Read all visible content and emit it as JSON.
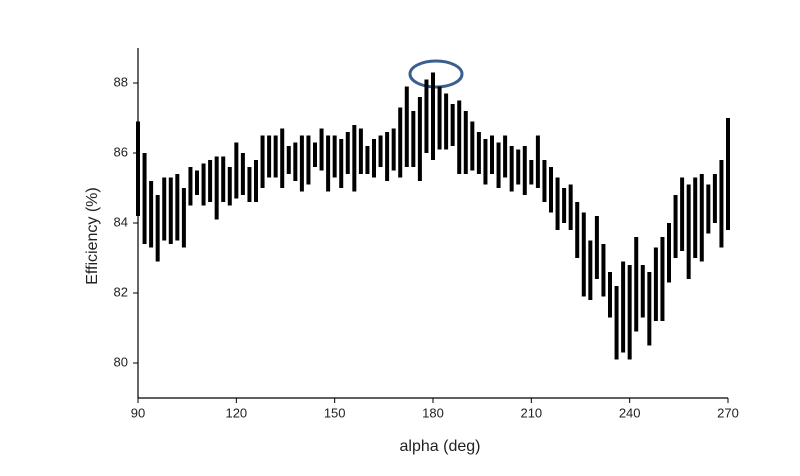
{
  "chart_data": {
    "type": "range",
    "x_label": "alpha (deg)",
    "y_label": "Efficiency (%)",
    "color": "#000000",
    "xlim": [
      90,
      270
    ],
    "xticks": [
      90,
      120,
      150,
      180,
      210,
      240,
      270
    ],
    "ylim": [
      79,
      89
    ],
    "yticks": [
      80,
      82,
      84,
      86,
      88
    ],
    "x": [
      90,
      92,
      94,
      96,
      98,
      100,
      102,
      104,
      106,
      108,
      110,
      112,
      114,
      116,
      118,
      120,
      122,
      124,
      126,
      128,
      130,
      132,
      134,
      136,
      138,
      140,
      142,
      144,
      146,
      148,
      150,
      152,
      154,
      156,
      158,
      160,
      162,
      164,
      166,
      168,
      170,
      172,
      174,
      176,
      178,
      180,
      182,
      184,
      186,
      188,
      190,
      192,
      194,
      196,
      198,
      200,
      202,
      204,
      206,
      208,
      210,
      212,
      214,
      216,
      218,
      220,
      222,
      224,
      226,
      228,
      230,
      232,
      234,
      236,
      238,
      240,
      242,
      244,
      246,
      248,
      250,
      252,
      254,
      256,
      258,
      260,
      262,
      264,
      266,
      268,
      270
    ],
    "low": [
      84.2,
      83.4,
      83.3,
      82.9,
      83.5,
      83.4,
      83.5,
      83.3,
      84.5,
      84.8,
      84.5,
      84.6,
      84.1,
      84.6,
      84.5,
      84.7,
      84.8,
      84.6,
      84.6,
      85.0,
      85.3,
      85.3,
      85.0,
      85.4,
      85.2,
      84.9,
      85.1,
      85.6,
      85.5,
      84.9,
      85.3,
      85.0,
      85.4,
      84.9,
      85.4,
      85.4,
      85.3,
      85.6,
      85.2,
      85.5,
      85.3,
      85.6,
      85.6,
      85.2,
      86.0,
      85.8,
      86.1,
      86.1,
      86.2,
      85.4,
      85.4,
      85.5,
      85.4,
      85.1,
      85.4,
      85.0,
      85.3,
      84.9,
      85.1,
      84.8,
      85.1,
      85.0,
      84.6,
      84.3,
      83.8,
      84.0,
      83.8,
      83.0,
      81.9,
      81.8,
      82.4,
      81.9,
      81.3,
      80.1,
      80.3,
      80.1,
      80.9,
      81.3,
      80.5,
      81.2,
      81.2,
      82.3,
      83.0,
      83.2,
      82.4,
      83.0,
      82.9,
      83.7,
      84.0,
      83.3,
      83.8
    ],
    "high": [
      86.9,
      86.0,
      85.2,
      84.8,
      85.3,
      85.3,
      85.4,
      85.0,
      85.6,
      85.5,
      85.7,
      85.8,
      85.9,
      85.9,
      85.6,
      86.3,
      86.0,
      85.6,
      85.8,
      86.5,
      86.5,
      86.5,
      86.7,
      86.2,
      86.3,
      86.5,
      86.5,
      86.3,
      86.7,
      86.5,
      86.5,
      86.4,
      86.6,
      86.8,
      86.7,
      86.2,
      86.4,
      86.5,
      86.6,
      86.7,
      87.3,
      87.9,
      87.2,
      87.6,
      88.1,
      88.3,
      87.9,
      87.7,
      87.4,
      87.5,
      87.2,
      86.9,
      86.6,
      86.4,
      86.5,
      86.3,
      86.5,
      86.2,
      86.1,
      86.2,
      85.8,
      86.5,
      85.8,
      85.6,
      85.3,
      85.0,
      85.1,
      84.6,
      84.3,
      83.5,
      84.2,
      83.4,
      82.6,
      82.2,
      82.9,
      82.8,
      83.6,
      82.8,
      82.6,
      83.3,
      83.6,
      84.0,
      84.8,
      85.3,
      85.1,
      85.3,
      85.4,
      85.1,
      85.4,
      85.8,
      87.0
    ]
  }
}
